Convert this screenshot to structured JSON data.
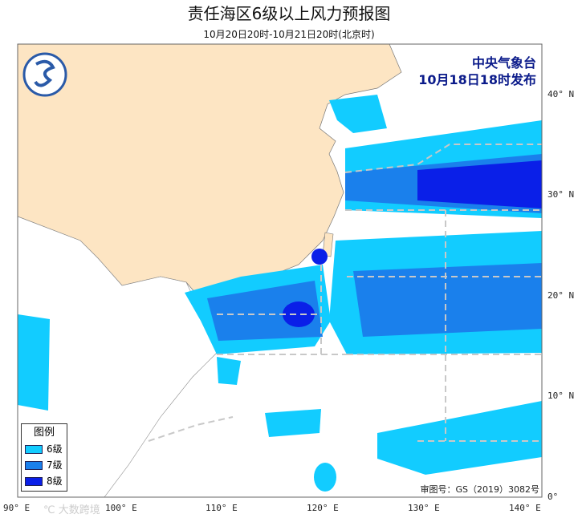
{
  "title": "责任海区6级以上风力预报图",
  "subtitle": "10月20日20时-10月21日20时(北京时)",
  "issuer": {
    "line1": "中央气象台",
    "line2": "10月18日18时发布"
  },
  "approval": "审图号：GS（2019）3082号",
  "watermark": "℃ 大数跨境",
  "legend": {
    "title": "图例",
    "items": [
      {
        "label": "6级",
        "color": "#12ccff"
      },
      {
        "label": "7级",
        "color": "#1a80ec"
      },
      {
        "label": "8级",
        "color": "#0a1fe8"
      }
    ]
  },
  "axes": {
    "lon": [
      "90° E",
      "100° E",
      "110° E",
      "120° E",
      "130° E",
      "140° E"
    ],
    "lat": [
      "0°",
      "10° N",
      "20° N",
      "30° N",
      "40° N"
    ]
  },
  "colors": {
    "land_china": "#fde5c3",
    "boundary": "#c8c8c8",
    "river": "#a8c8e8"
  }
}
